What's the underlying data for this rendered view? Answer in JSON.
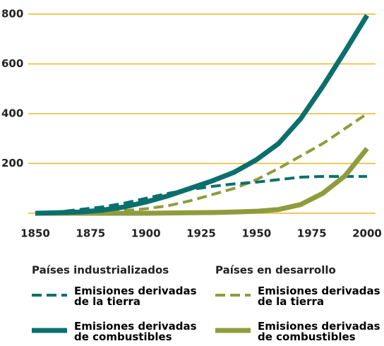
{
  "chart_data": {
    "type": "line",
    "x": [
      1850,
      1860,
      1870,
      1880,
      1890,
      1900,
      1910,
      1920,
      1930,
      1940,
      1950,
      1960,
      1970,
      1980,
      1990,
      2000
    ],
    "xlim": [
      1850,
      2000
    ],
    "xticks": [
      1850,
      1875,
      1900,
      1925,
      1950,
      1975,
      2000
    ],
    "ylim": [
      0,
      800
    ],
    "yticks": [
      200,
      400,
      600,
      800
    ],
    "grid": true,
    "grid_color": "#e8b72a",
    "legend_groups": [
      "Países industrializados",
      "Países en desarrollo"
    ],
    "series": [
      {
        "name": "Emisiones derivadas de la tierra",
        "group": 0,
        "color": "#0b6f6c",
        "dashed": true,
        "values": [
          0,
          5,
          15,
          25,
          40,
          60,
          80,
          95,
          108,
          118,
          125,
          135,
          145,
          148,
          148,
          148
        ]
      },
      {
        "name": "Emisiones derivadas de combustibles",
        "group": 0,
        "color": "#0b6f6c",
        "dashed": false,
        "values": [
          0,
          2,
          5,
          12,
          25,
          45,
          70,
          100,
          130,
          165,
          215,
          280,
          380,
          510,
          650,
          795
        ]
      },
      {
        "name": "Emisiones derivadas de la tierra",
        "group": 1,
        "color": "#8f9c3e",
        "dashed": true,
        "values": [
          0,
          1,
          3,
          6,
          10,
          18,
          30,
          50,
          75,
          100,
          135,
          180,
          230,
          280,
          340,
          400
        ]
      },
      {
        "name": "Emisiones derivadas de combustibles",
        "group": 1,
        "color": "#8f9c3e",
        "dashed": false,
        "values": [
          0,
          0,
          0,
          0,
          0,
          0,
          1,
          2,
          3,
          5,
          8,
          15,
          35,
          80,
          150,
          260
        ]
      }
    ]
  }
}
